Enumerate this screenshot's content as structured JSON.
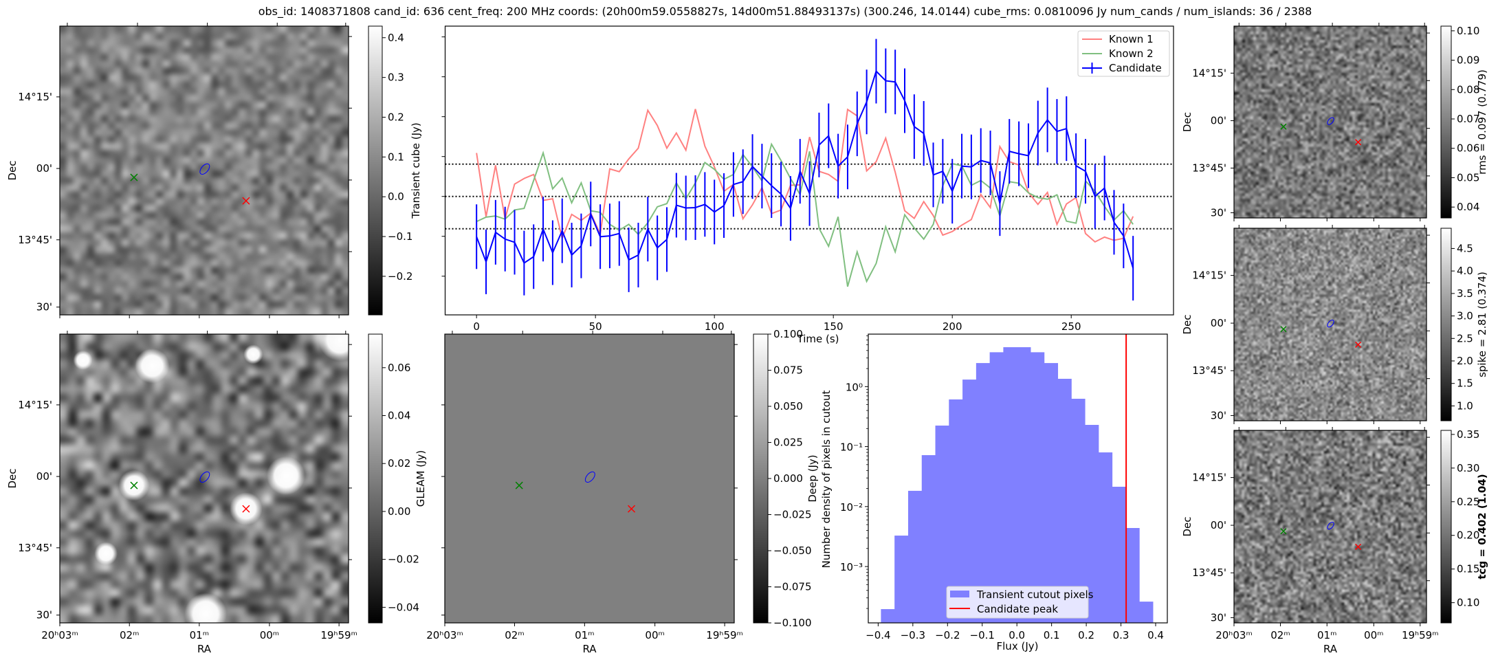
{
  "title": "obs_id: 1408371808 cand_id: 636 cent_freq: 200 MHz coords: (20h00m59.0558827s, 14d00m51.88493137s) (300.246, 14.0144) cube_rms: 0.0810096 Jy num_cands / num_islands: 36 / 2388",
  "axes": {
    "ra_label": "RA",
    "dec_label": "Dec",
    "ra_ticks": [
      "20ʰ03ᵐ",
      "02ᵐ",
      "01ᵐ",
      "00ᵐ",
      "19ʰ59ᵐ"
    ],
    "dec_ticks": [
      "14°15'",
      "00'",
      "13°45'",
      "30'"
    ]
  },
  "panels": {
    "transient": {
      "cbar_label": "Transient cube (Jy)",
      "cbar_range": [
        -0.297,
        0.429
      ],
      "cbar_ticks": [
        -0.2,
        -0.1,
        0.0,
        0.1,
        0.2,
        0.3,
        0.4
      ],
      "cbar_tick_labels": [
        "−0.2",
        "−0.1",
        "0.0",
        "0.1",
        "0.2",
        "0.3",
        "0.4"
      ]
    },
    "gleam": {
      "cbar_label": "GLEAM (Jy)",
      "cbar_range": [
        -0.0465,
        0.074
      ],
      "cbar_ticks": [
        -0.04,
        -0.02,
        0.0,
        0.02,
        0.04,
        0.06
      ],
      "cbar_tick_labels": [
        "−0.04",
        "−0.02",
        "0.00",
        "0.02",
        "0.04",
        "0.06"
      ]
    },
    "deep": {
      "cbar_label": "Deep (Jy)",
      "cbar_range": [
        -0.1,
        0.1
      ],
      "cbar_ticks": [
        -0.1,
        -0.075,
        -0.05,
        -0.025,
        0.0,
        0.025,
        0.05,
        0.075,
        0.1
      ],
      "cbar_tick_labels": [
        "−0.100",
        "−0.075",
        "−0.050",
        "−0.025",
        "0.000",
        "0.025",
        "0.050",
        "0.075",
        "0.100"
      ]
    },
    "rms": {
      "cbar_label": "rms = 0.097 (0.779)",
      "cbar_range": [
        0.0363,
        0.1016
      ],
      "cbar_ticks": [
        0.04,
        0.05,
        0.06,
        0.07,
        0.08,
        0.09,
        0.1
      ],
      "cbar_tick_labels": [
        "0.04",
        "0.05",
        "0.06",
        "0.07",
        "0.08",
        "0.09",
        "0.10"
      ]
    },
    "spike": {
      "cbar_label": "spike = 2.81 (0.374)",
      "cbar_range": [
        0.67,
        4.95
      ],
      "cbar_ticks": [
        1.0,
        1.5,
        2.0,
        2.5,
        3.0,
        3.5,
        4.0,
        4.5
      ],
      "cbar_tick_labels": [
        "1.0",
        "1.5",
        "2.0",
        "2.5",
        "3.0",
        "3.5",
        "4.0",
        "4.5"
      ]
    },
    "tcg": {
      "cbar_label": "tcg = 0.402 (1.04)",
      "cbar_range": [
        0.07,
        0.356
      ],
      "cbar_ticks": [
        0.1,
        0.15,
        0.2,
        0.25,
        0.3,
        0.35
      ],
      "cbar_tick_labels": [
        "0.10",
        "0.15",
        "0.20",
        "0.25",
        "0.30",
        "0.35"
      ]
    }
  },
  "markers": {
    "known_1_color": "#ff0000",
    "known_2_color": "#008000",
    "candidate_contour_color": "#0000ff"
  },
  "chart_data": [
    {
      "type": "line",
      "title": "",
      "xlabel": "Time (s)",
      "ylabel": "",
      "xlim": [
        -13.2,
        293
      ],
      "ylim": [
        -0.297,
        0.427
      ],
      "xticks": [
        0,
        50,
        100,
        150,
        200,
        250
      ],
      "xtick_labels": [
        "0",
        "50",
        "100",
        "150",
        "200",
        "250"
      ],
      "yticks": [
        -0.2,
        -0.1,
        0.0,
        0.1,
        0.2,
        0.3,
        0.4
      ],
      "hlines": {
        "values": [
          -0.0810096,
          0.0,
          0.0810096
        ],
        "style": "dotted",
        "color": "#000000"
      },
      "legend_position": "top-right",
      "x_start": 0,
      "x_step": 4,
      "series": [
        {
          "name": "Known 1",
          "color": "#ff8080",
          "errorbars": false,
          "values": [
            0.109,
            -0.051,
            0.078,
            -0.056,
            0.031,
            0.045,
            0.055,
            -0.01,
            -0.006,
            -0.105,
            -0.045,
            -0.06,
            -0.042,
            -0.094,
            0.069,
            0.062,
            0.094,
            0.121,
            0.216,
            0.178,
            0.121,
            0.159,
            0.116,
            0.219,
            0.126,
            0.074,
            0.013,
            0.03,
            -0.056,
            -0.021,
            0.022,
            -0.043,
            -0.034,
            0.028,
            0.029,
            0.149,
            0.063,
            0.055,
            0.038,
            0.218,
            0.202,
            0.064,
            0.087,
            0.146,
            0.061,
            -0.036,
            -0.055,
            -0.013,
            -0.048,
            -0.097,
            -0.088,
            -0.072,
            -0.058,
            0.005,
            -0.028,
            0.125,
            0.087,
            0.079,
            0.01,
            -0.02,
            0.01,
            -0.07,
            -0.019,
            -0.003,
            -0.093,
            -0.114,
            -0.102,
            -0.11,
            -0.105,
            -0.05
          ]
        },
        {
          "name": "Known 2",
          "color": "#80bf80",
          "errorbars": false,
          "values": [
            -0.063,
            -0.052,
            -0.049,
            -0.057,
            -0.034,
            -0.03,
            0.04,
            0.109,
            0.019,
            0.046,
            -0.016,
            0.034,
            -0.036,
            -0.04,
            -0.07,
            -0.085,
            -0.07,
            -0.095,
            -0.066,
            -0.026,
            -0.018,
            0.034,
            -0.006,
            0.034,
            0.085,
            0.068,
            0.043,
            0.055,
            0.105,
            0.074,
            0.039,
            0.131,
            0.09,
            0.045,
            0.005,
            0.113,
            -0.08,
            -0.125,
            -0.051,
            -0.226,
            -0.139,
            -0.213,
            -0.168,
            -0.076,
            -0.139,
            -0.046,
            -0.079,
            -0.107,
            -0.07,
            0.027,
            0.082,
            0.077,
            0.028,
            0.04,
            0.021,
            -0.049,
            0.037,
            0.033,
            0.009,
            -0.003,
            -0.007,
            0.004,
            -0.062,
            -0.067,
            0.039,
            0.013,
            -0.025,
            -0.059,
            -0.036,
            -0.07
          ]
        },
        {
          "name": "Candidate",
          "color": "#0000ff",
          "errorbars": true,
          "error": 0.081,
          "values": [
            -0.101,
            -0.164,
            -0.09,
            -0.107,
            -0.115,
            -0.167,
            -0.151,
            -0.082,
            -0.141,
            -0.086,
            -0.147,
            -0.124,
            -0.044,
            -0.101,
            -0.099,
            -0.093,
            -0.159,
            -0.147,
            -0.082,
            -0.129,
            -0.108,
            -0.022,
            -0.029,
            -0.028,
            -0.02,
            -0.039,
            -0.023,
            0.03,
            0.037,
            0.075,
            0.051,
            0.027,
            0.006,
            -0.03,
            0.063,
            0.007,
            0.129,
            0.152,
            0.076,
            0.099,
            0.182,
            0.237,
            0.314,
            0.29,
            0.287,
            0.24,
            0.175,
            0.158,
            0.054,
            0.063,
            0.013,
            0.076,
            0.074,
            0.09,
            0.084,
            -0.018,
            0.113,
            0.107,
            0.102,
            0.159,
            0.192,
            0.163,
            0.17,
            0.077,
            0.063,
            0.0,
            0.021,
            -0.065,
            -0.099,
            -0.18
          ]
        }
      ]
    },
    {
      "type": "bar",
      "title": "",
      "xlabel": "Flux (Jy)",
      "ylabel": "Number density of pixels in cutout",
      "yscale": "log",
      "xlim": [
        -0.4285,
        0.4337
      ],
      "ylim": [
        0.000115,
        7.5
      ],
      "xticks": [
        -0.4,
        -0.3,
        -0.2,
        -0.1,
        0.0,
        0.1,
        0.2,
        0.3,
        0.4
      ],
      "xtick_labels": [
        "−0.4",
        "−0.3",
        "−0.2",
        "−0.1",
        "0.0",
        "0.1",
        "0.2",
        "0.3",
        "0.4"
      ],
      "yticks": [
        1,
        0.1,
        0.01,
        0.001
      ],
      "ytick_labels": [
        "10⁰",
        "10⁻¹",
        "10⁻²",
        "10⁻³"
      ],
      "bin_start": -0.392,
      "bin_width": 0.0392,
      "values": [
        0.000195,
        0.00328,
        0.0183,
        0.072,
        0.224,
        0.611,
        1.31,
        2.47,
        3.74,
        4.54,
        4.54,
        3.74,
        2.47,
        1.35,
        0.627,
        0.23,
        0.08,
        0.0214,
        0.00439,
        0.00026
      ],
      "bar_color": "#8080ff",
      "vline": {
        "name": "Candidate peak",
        "value": 0.315,
        "color": "#ff0000"
      },
      "legend": [
        "Transient cutout pixels",
        "Candidate peak"
      ],
      "legend_position": "bottom-center"
    }
  ]
}
